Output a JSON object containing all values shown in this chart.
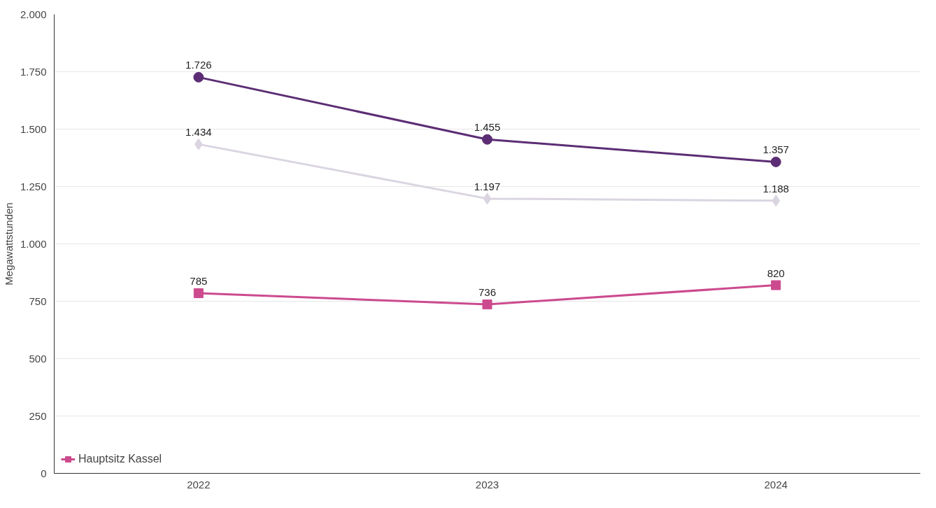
{
  "chart_data": {
    "type": "line",
    "ylabel": "Megawattstunden",
    "categories": [
      "2022",
      "2023",
      "2024"
    ],
    "series": [
      {
        "color": "#5c2d74",
        "marker": "circle",
        "values": [
          1726,
          1455,
          1357
        ],
        "value_labels": [
          "1.726",
          "1.455",
          "1.357"
        ]
      },
      {
        "color": "#dad5e1",
        "marker": "diamond",
        "values": [
          1434,
          1197,
          1188
        ],
        "value_labels": [
          "1.434",
          "1.197",
          "1.188"
        ]
      },
      {
        "name": "Hauptsitz Kassel",
        "color": "#cc4a8e",
        "marker": "square",
        "values": [
          785,
          736,
          820
        ],
        "value_labels": [
          "785",
          "736",
          "820"
        ]
      }
    ],
    "ylim": [
      0,
      2000
    ],
    "yticks": [
      0,
      250,
      500,
      750,
      {
        "value": 1000,
        "label": "1.000"
      },
      {
        "value": 1250,
        "label": "1.250"
      },
      {
        "value": 1500,
        "label": "1.500"
      },
      {
        "value": 1750,
        "label": "1.750"
      },
      {
        "value": 2000,
        "label": "2.000"
      }
    ],
    "grid": "y",
    "legend": "bottom left",
    "line_style": "solid"
  }
}
